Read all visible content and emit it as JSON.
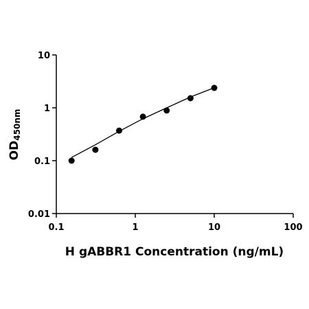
{
  "chart_data": {
    "type": "scatter",
    "xlabel": "H gABBR1 Concentration (ng/mL)",
    "ylabel": "OD",
    "ylabel_sub": "450nm",
    "x": [
      0.156,
      0.3125,
      0.625,
      1.25,
      2.5,
      5,
      10
    ],
    "values": [
      0.1,
      0.161,
      0.37,
      0.68,
      0.89,
      1.52,
      2.38
    ],
    "color": "#000000",
    "curve": {
      "x": [
        0.156,
        0.3125,
        0.625,
        1.25,
        2.5,
        5,
        10
      ],
      "y": [
        0.115,
        0.2,
        0.36,
        0.62,
        1.0,
        1.6,
        2.4
      ]
    },
    "xscale": "log",
    "yscale": "log",
    "xlim": [
      0.1,
      100
    ],
    "ylim": [
      0.01,
      10
    ],
    "xticks": [
      0.1,
      1,
      10,
      100
    ],
    "yticks": [
      0.01,
      0.1,
      1,
      10
    ]
  }
}
